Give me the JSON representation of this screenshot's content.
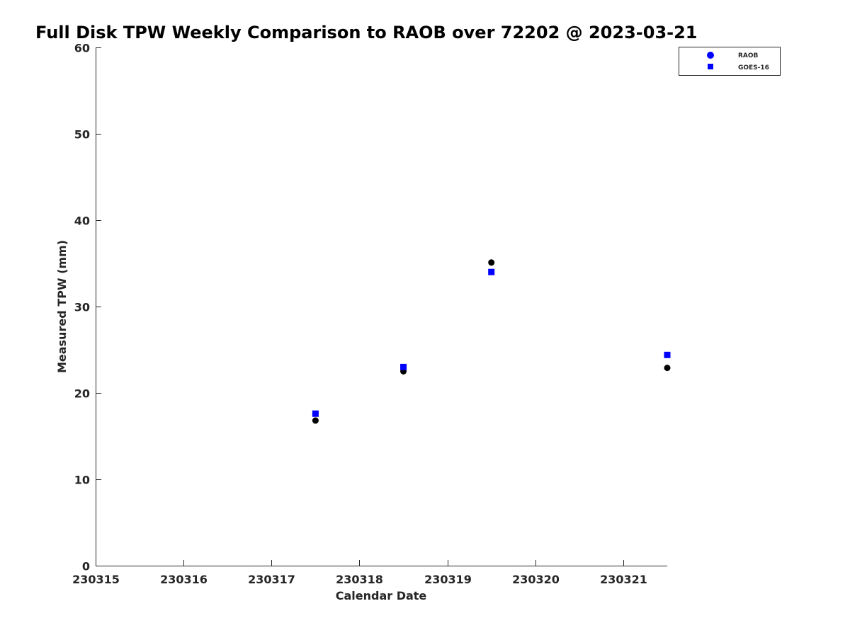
{
  "chart_data": {
    "type": "scatter",
    "title": "Full Disk TPW Weekly Comparison to RAOB over 72202 @ 2023-03-21",
    "xlabel": "Calendar Date",
    "ylabel": "Measured TPW (mm)",
    "xlim": [
      230315,
      230321.5
    ],
    "ylim": [
      0,
      60
    ],
    "xticks": [
      230315,
      230316,
      230317,
      230318,
      230319,
      230320,
      230321
    ],
    "xtick_labels": [
      "230315",
      "230316",
      "230317",
      "230318",
      "230319",
      "230320",
      "230321"
    ],
    "yticks": [
      0,
      10,
      20,
      30,
      40,
      50,
      60
    ],
    "ytick_labels": [
      "0",
      "10",
      "20",
      "30",
      "40",
      "50",
      "60"
    ],
    "grid": false,
    "legend_position": "top-right",
    "series": [
      {
        "name": "RAOB",
        "marker": "circle",
        "color": "#000000",
        "legend_color": "#0000ff",
        "x": [
          230317.5,
          230318.5,
          230319.5,
          230321.5
        ],
        "y": [
          16.8,
          22.5,
          35.1,
          22.9
        ]
      },
      {
        "name": "GOES-16",
        "marker": "square",
        "color": "#0000ff",
        "legend_color": "#0000ff",
        "x": [
          230317.5,
          230318.5,
          230319.5,
          230321.5
        ],
        "y": [
          17.6,
          23.0,
          34.0,
          24.4
        ]
      }
    ]
  }
}
